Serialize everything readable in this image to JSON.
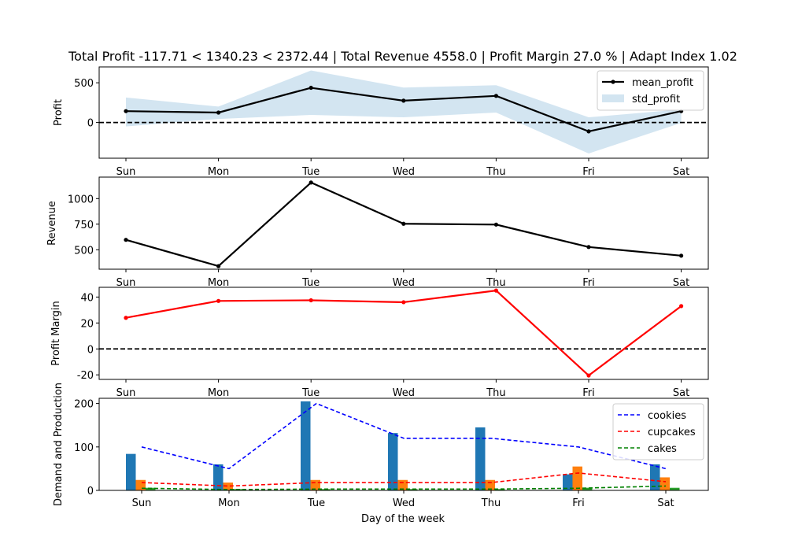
{
  "figure_title": "Total Profit -117.71 < 1340.23 < 2372.44 | Total Revenue 4558.0 | Profit Margin 27.0 % | Adapt Index 1.02",
  "xlabel": "Day of the week",
  "chart_data": [
    {
      "type": "line",
      "ylabel": "Profit",
      "categories": [
        "Sun",
        "Mon",
        "Tue",
        "Wed",
        "Thu",
        "Fri",
        "Sat"
      ],
      "ylim": [
        -450,
        700
      ],
      "yticks": [
        0,
        500
      ],
      "hline": 0,
      "series": [
        {
          "name": "mean_profit",
          "color": "#000000",
          "values": [
            143,
            125,
            437,
            275,
            335,
            -112,
            143
          ]
        },
        {
          "name": "std_profit",
          "color": "#aecfe6",
          "kind": "band",
          "lower": [
            -50,
            45,
            95,
            65,
            125,
            -390,
            -5
          ],
          "upper": [
            315,
            200,
            655,
            440,
            470,
            65,
            165
          ]
        }
      ],
      "legend": "upper right",
      "grid": false
    },
    {
      "type": "line",
      "ylabel": "Revenue",
      "categories": [
        "Sun",
        "Mon",
        "Tue",
        "Wed",
        "Thu",
        "Fri",
        "Sat"
      ],
      "ylim": [
        310,
        1210
      ],
      "yticks": [
        500,
        750,
        1000
      ],
      "series": [
        {
          "color": "#000000",
          "values": [
            597,
            340,
            1157,
            754,
            746,
            527,
            442
          ]
        }
      ],
      "grid": false
    },
    {
      "type": "line",
      "ylabel": "Profit Margin",
      "categories": [
        "Sun",
        "Mon",
        "Tue",
        "Wed",
        "Thu",
        "Fri",
        "Sat"
      ],
      "ylim": [
        -23.5,
        47.5
      ],
      "yticks": [
        -20,
        0,
        20,
        40
      ],
      "hline": 0,
      "series": [
        {
          "color": "#ff0000",
          "values": [
            24,
            37,
            37.5,
            36,
            45,
            -20.5,
            33
          ]
        }
      ],
      "grid": false
    },
    {
      "type": "bar",
      "ylabel": "Demand and Production",
      "categories": [
        "Sun",
        "Mon",
        "Tue",
        "Wed",
        "Thu",
        "Fri",
        "Sat"
      ],
      "ylim": [
        0,
        212
      ],
      "yticks": [
        0,
        100,
        200
      ],
      "bars": [
        {
          "color": "#1f77b4",
          "values": [
            84,
            60,
            205,
            132,
            145,
            37,
            60
          ]
        },
        {
          "color": "#ff7f0e",
          "values": [
            24,
            18,
            24,
            24,
            24,
            55,
            30
          ]
        },
        {
          "color": "#2ca02c",
          "values": [
            6,
            3,
            3,
            3,
            3,
            6,
            6
          ]
        }
      ],
      "series": [
        {
          "name": "cookies",
          "color": "#0000ff",
          "values": [
            100,
            50,
            200,
            120,
            120,
            100,
            50
          ]
        },
        {
          "name": "cupcakes",
          "color": "#ff0000",
          "values": [
            18,
            10,
            18,
            18,
            18,
            40,
            20
          ]
        },
        {
          "name": "cakes",
          "color": "#008000",
          "values": [
            5,
            2,
            3,
            3,
            3,
            5,
            10
          ]
        }
      ],
      "legend": "upper right",
      "grid": false
    }
  ]
}
